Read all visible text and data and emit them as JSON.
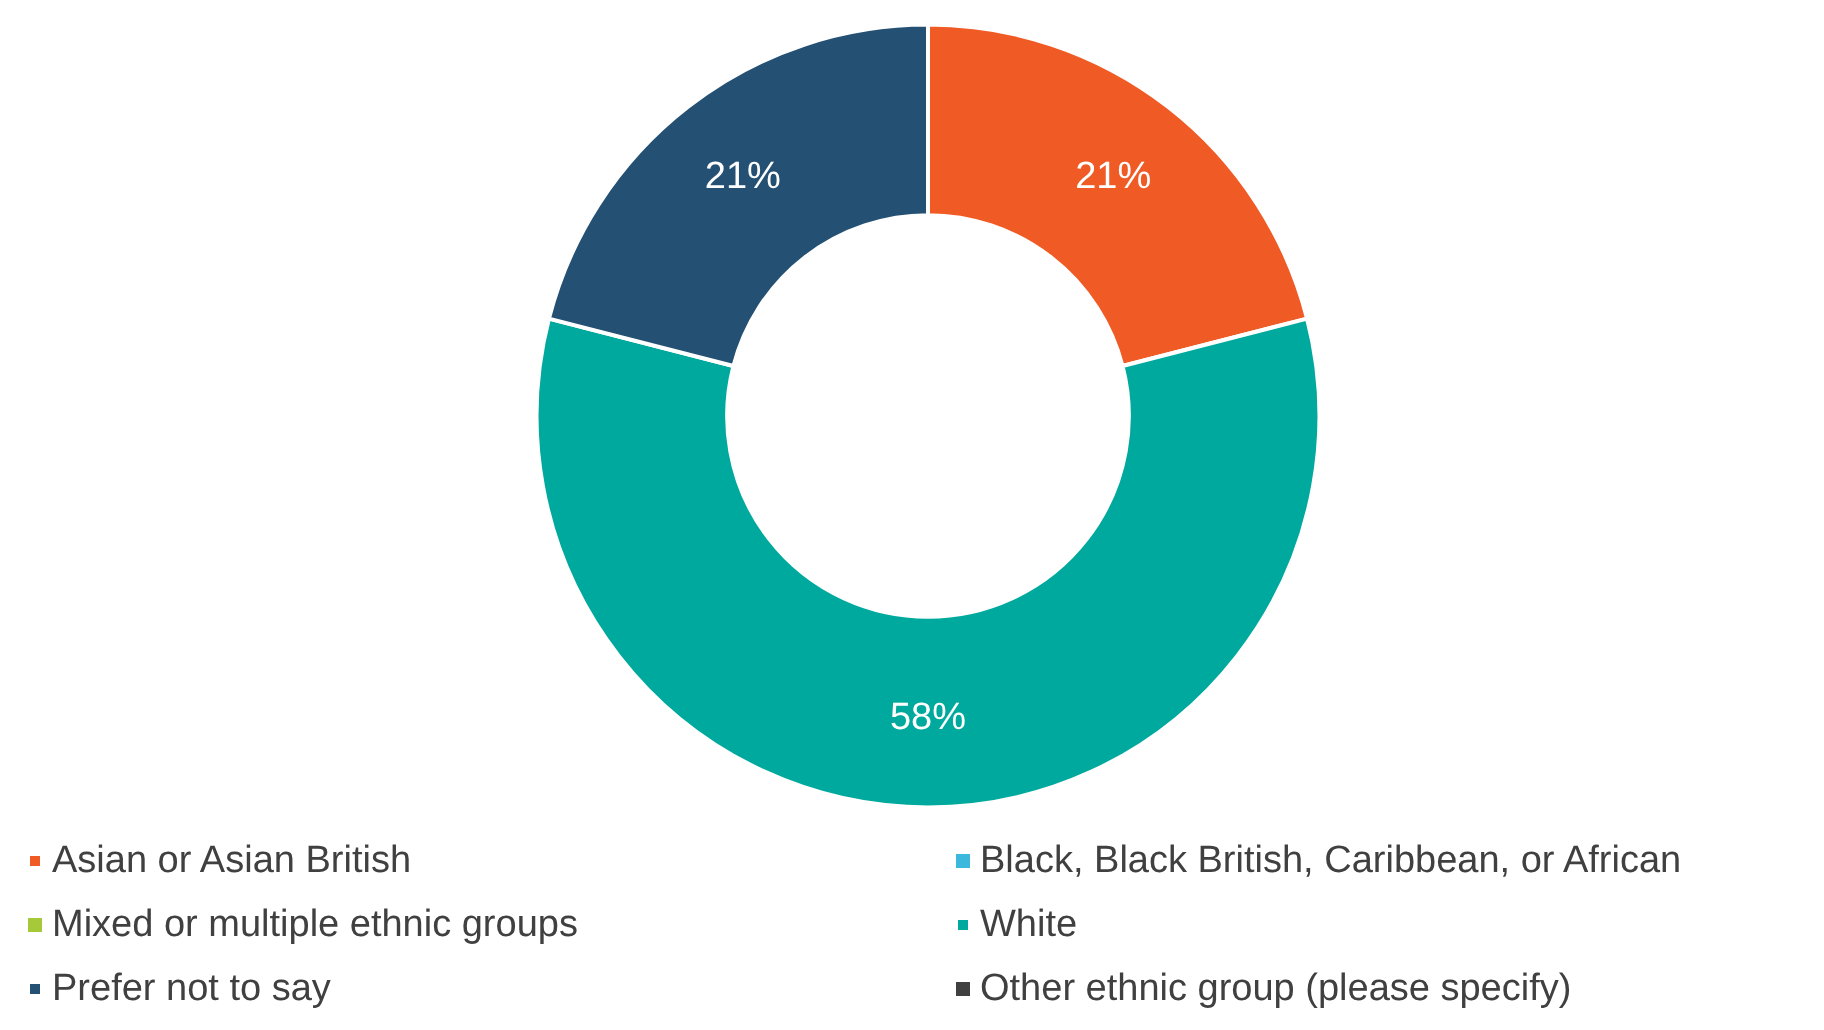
{
  "chart_data": {
    "type": "donut",
    "categories": [
      "Asian or Asian British",
      "Black, Black British, Caribbean, or African",
      "Mixed or multiple ethnic groups",
      "White",
      "Prefer not to say",
      "Other ethnic group (please specify)"
    ],
    "values": [
      21,
      0,
      0,
      58,
      21,
      0
    ],
    "colors": [
      "#f05a24",
      "#3cb8dc",
      "#a6c93a",
      "#00a99d",
      "#245173",
      "#404040"
    ],
    "value_labels": [
      "21%",
      null,
      null,
      "58%",
      "21%",
      null
    ],
    "legend": "bottom"
  }
}
